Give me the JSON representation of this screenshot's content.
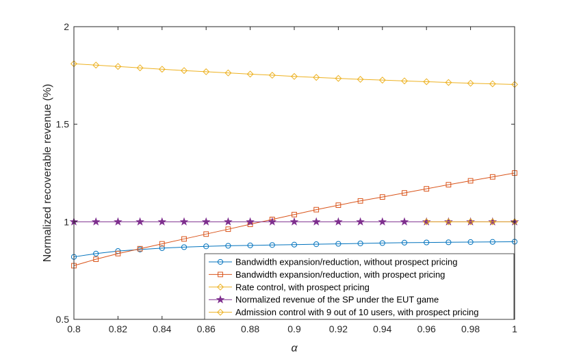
{
  "chart_data": {
    "type": "line",
    "xlabel": "α",
    "ylabel": "Normalized recoverable revenue (%)",
    "xlim": [
      0.8,
      1
    ],
    "ylim": [
      0.5,
      2
    ],
    "xticks": [
      0.8,
      0.82,
      0.84,
      0.86,
      0.88,
      0.9,
      0.92,
      0.94,
      0.96,
      0.98,
      1
    ],
    "xtick_labels": [
      "0.8",
      "0.82",
      "0.84",
      "0.86",
      "0.88",
      "0.9",
      "0.92",
      "0.94",
      "0.96",
      "0.98",
      "1"
    ],
    "yticks": [
      0.5,
      1,
      1.5,
      2
    ],
    "ytick_labels": [
      "0.5",
      "1",
      "1.5",
      "2"
    ],
    "grid": false,
    "legend_position": "bottom-right",
    "x": [
      0.8,
      0.81,
      0.82,
      0.83,
      0.84,
      0.85,
      0.86,
      0.87,
      0.88,
      0.89,
      0.9,
      0.91,
      0.92,
      0.93,
      0.94,
      0.95,
      0.96,
      0.97,
      0.98,
      0.99,
      1
    ],
    "series": [
      {
        "name": "Bandwidth expansion/reduction, without prospect pricing",
        "color": "#0072BD",
        "marker": "circle",
        "values": [
          0.82,
          0.837,
          0.85,
          0.858,
          0.865,
          0.87,
          0.874,
          0.877,
          0.879,
          0.881,
          0.883,
          0.885,
          0.887,
          0.889,
          0.891,
          0.893,
          0.894,
          0.895,
          0.896,
          0.897,
          0.898
        ]
      },
      {
        "name": "Bandwidth expansion/reduction, with prospect pricing",
        "color": "#D95319",
        "marker": "square",
        "values": [
          0.775,
          0.808,
          0.837,
          0.862,
          0.887,
          0.912,
          0.937,
          0.962,
          0.987,
          1.012,
          1.037,
          1.062,
          1.085,
          1.107,
          1.127,
          1.148,
          1.169,
          1.19,
          1.21,
          1.23,
          1.25
        ]
      },
      {
        "name": "Rate control, with prospect pricing",
        "color": "#EDB120",
        "marker": "diamond",
        "values": [
          1.81,
          1.803,
          1.796,
          1.789,
          1.782,
          1.775,
          1.769,
          1.763,
          1.757,
          1.751,
          1.745,
          1.74,
          1.735,
          1.73,
          1.726,
          1.722,
          1.718,
          1.714,
          1.71,
          1.707,
          1.704
        ]
      },
      {
        "name": "Normalized revenue of the SP under the EUT game",
        "color": "#7E2F8E",
        "marker": "star",
        "values": [
          1,
          1,
          1,
          1,
          1,
          1,
          1,
          1,
          1,
          1,
          1,
          1,
          1,
          1,
          1,
          1,
          1,
          1,
          1,
          1,
          1
        ]
      },
      {
        "name": "Admission control with 9 out of 10 users, with prospect pricing",
        "color": "#EDB120",
        "marker": "diamond",
        "x": [
          0.96,
          0.97,
          0.98,
          0.99,
          1
        ],
        "values": [
          1,
          1,
          1,
          1,
          1
        ]
      }
    ]
  }
}
